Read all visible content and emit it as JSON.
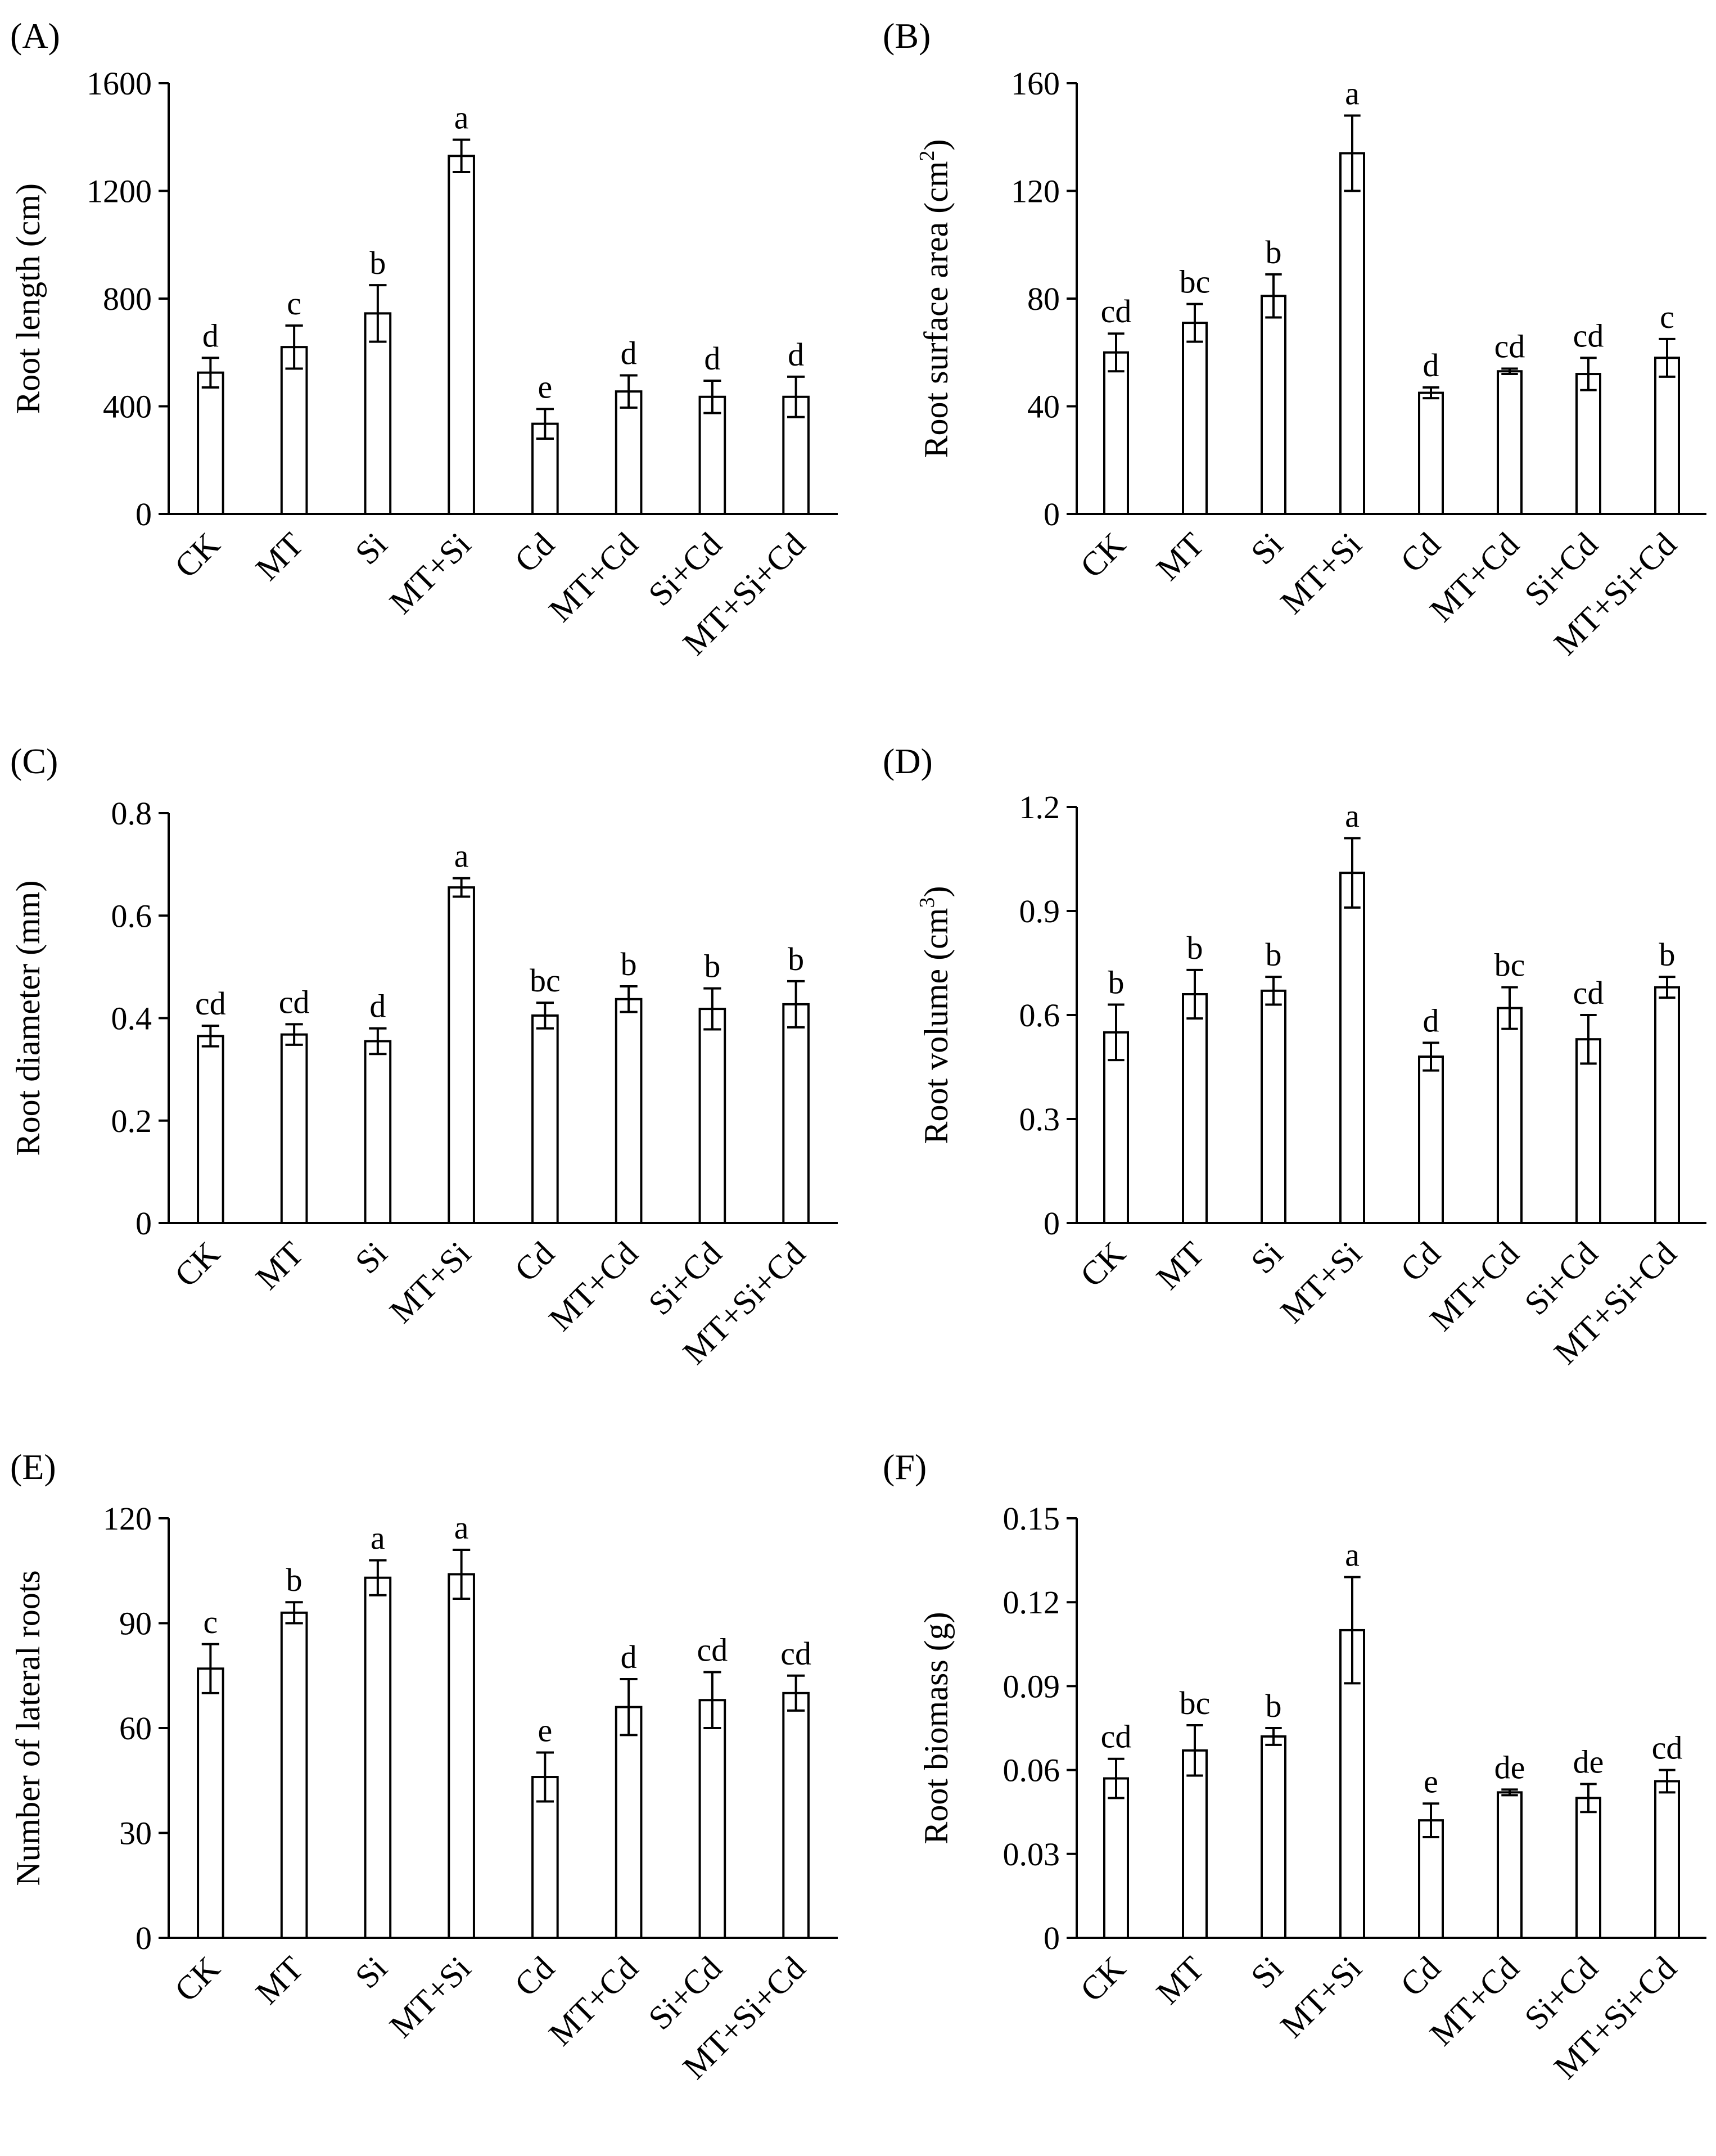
{
  "chart_data": [
    {
      "panel": "(A)",
      "type": "bar",
      "ylabel": "Root length (cm)",
      "ylabel_sup": "",
      "ylabel_tail": "",
      "categories": [
        "CK",
        "MT",
        "Si",
        "MT+Si",
        "Cd",
        "MT+Cd",
        "Si+Cd",
        "MT+Si+Cd"
      ],
      "values": [
        525,
        620,
        745,
        1330,
        335,
        455,
        435,
        435
      ],
      "errors": [
        55,
        80,
        105,
        60,
        55,
        60,
        60,
        75
      ],
      "letters": [
        "d",
        "c",
        "b",
        "a",
        "e",
        "d",
        "d",
        "d"
      ],
      "ylim": [
        0,
        1600
      ],
      "yticks": [
        0,
        400,
        800,
        1200,
        1600
      ],
      "ytick_labels": [
        "0",
        "400",
        "800",
        "1200",
        "1600"
      ]
    },
    {
      "panel": "(B)",
      "type": "bar",
      "ylabel": "Root surface area (cm",
      "ylabel_sup": "2",
      "ylabel_tail": ")",
      "categories": [
        "CK",
        "MT",
        "Si",
        "MT+Si",
        "Cd",
        "MT+Cd",
        "Si+Cd",
        "MT+Si+Cd"
      ],
      "values": [
        60,
        71,
        81,
        134,
        45,
        53,
        52,
        58
      ],
      "errors": [
        7,
        7,
        8,
        14,
        2,
        1,
        6,
        7
      ],
      "letters": [
        "cd",
        "bc",
        "b",
        "a",
        "d",
        "cd",
        "cd",
        "c"
      ],
      "ylim": [
        0,
        160
      ],
      "yticks": [
        0,
        40,
        80,
        120,
        160
      ],
      "ytick_labels": [
        "0",
        "40",
        "80",
        "120",
        "160"
      ]
    },
    {
      "panel": "(C)",
      "type": "bar",
      "ylabel": "Root diameter (mm)",
      "ylabel_sup": "",
      "ylabel_tail": "",
      "categories": [
        "CK",
        "MT",
        "Si",
        "MT+Si",
        "Cd",
        "MT+Cd",
        "Si+Cd",
        "MT+Si+Cd"
      ],
      "values": [
        0.365,
        0.368,
        0.355,
        0.655,
        0.405,
        0.437,
        0.418,
        0.427
      ],
      "errors": [
        0.02,
        0.02,
        0.025,
        0.018,
        0.025,
        0.025,
        0.04,
        0.045
      ],
      "letters": [
        "cd",
        "cd",
        "d",
        "a",
        "bc",
        "b",
        "b",
        "b"
      ],
      "ylim": [
        0,
        0.8
      ],
      "yticks": [
        0,
        0.2,
        0.4,
        0.6,
        0.8
      ],
      "ytick_labels": [
        "0",
        "0.2",
        "0.4",
        "0.6",
        "0.8"
      ]
    },
    {
      "panel": "(D)",
      "type": "bar",
      "ylabel": "Root volume (cm",
      "ylabel_sup": "3",
      "ylabel_tail": ")",
      "categories": [
        "CK",
        "MT",
        "Si",
        "MT+Si",
        "Cd",
        "MT+Cd",
        "Si+Cd",
        "MT+Si+Cd"
      ],
      "values": [
        0.55,
        0.66,
        0.67,
        1.01,
        0.48,
        0.62,
        0.53,
        0.68
      ],
      "errors": [
        0.08,
        0.07,
        0.04,
        0.1,
        0.04,
        0.06,
        0.07,
        0.03
      ],
      "letters": [
        "b",
        "b",
        "b",
        "a",
        "d",
        "bc",
        "cd",
        "b"
      ],
      "ylim": [
        0,
        1.2
      ],
      "yticks": [
        0,
        0.3,
        0.6,
        0.9,
        1.2
      ],
      "ytick_labels": [
        "0",
        "0.3",
        "0.6",
        "0.9",
        "1.2"
      ]
    },
    {
      "panel": "(E)",
      "type": "bar",
      "ylabel": "Number of lateral roots",
      "ylabel_sup": "",
      "ylabel_tail": "",
      "categories": [
        "CK",
        "MT",
        "Si",
        "MT+Si",
        "Cd",
        "MT+Cd",
        "Si+Cd",
        "MT+Si+Cd"
      ],
      "values": [
        77,
        93,
        103,
        104,
        46,
        66,
        68,
        70
      ],
      "errors": [
        7,
        3,
        5,
        7,
        7,
        8,
        8,
        5
      ],
      "letters": [
        "c",
        "b",
        "a",
        "a",
        "e",
        "d",
        "cd",
        "cd"
      ],
      "ylim": [
        0,
        120
      ],
      "yticks": [
        0,
        30,
        60,
        90,
        120
      ],
      "ytick_labels": [
        "0",
        "30",
        "60",
        "90",
        "120"
      ]
    },
    {
      "panel": "(F)",
      "type": "bar",
      "ylabel": "Root biomass (g)",
      "ylabel_sup": "",
      "ylabel_tail": "",
      "categories": [
        "CK",
        "MT",
        "Si",
        "MT+Si",
        "Cd",
        "MT+Cd",
        "Si+Cd",
        "MT+Si+Cd"
      ],
      "values": [
        0.057,
        0.067,
        0.072,
        0.11,
        0.042,
        0.052,
        0.05,
        0.056
      ],
      "errors": [
        0.007,
        0.009,
        0.003,
        0.019,
        0.006,
        0.001,
        0.005,
        0.004
      ],
      "letters": [
        "cd",
        "bc",
        "b",
        "a",
        "e",
        "de",
        "de",
        "cd"
      ],
      "ylim": [
        0,
        0.15
      ],
      "yticks": [
        0,
        0.03,
        0.06,
        0.09,
        0.12,
        0.15
      ],
      "ytick_labels": [
        "0",
        "0.03",
        "0.06",
        "0.09",
        "0.12",
        "0.15"
      ]
    }
  ]
}
